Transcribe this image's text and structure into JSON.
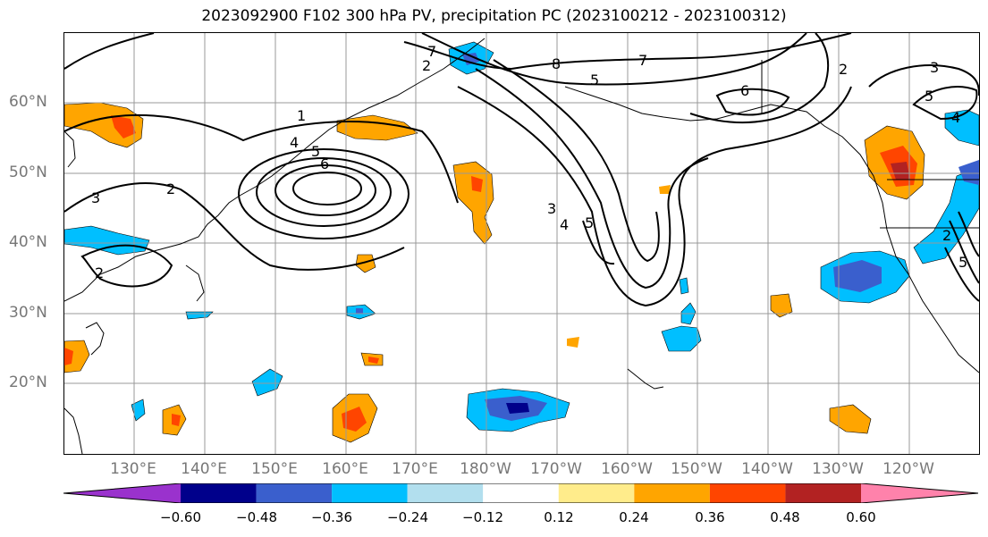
{
  "title": "2023092900 F102 300 hPa PV, precipitation PC (2023100212 - 2023100312)",
  "lon_labels": [
    "130°E",
    "140°E",
    "150°E",
    "160°E",
    "170°E",
    "180°W",
    "170°W",
    "160°W",
    "150°W",
    "140°W",
    "130°W",
    "120°W"
  ],
  "lat_labels": [
    "60°N",
    "50°N",
    "40°N",
    "30°N",
    "20°N"
  ],
  "colorbar": {
    "ticks": [
      "−0.60",
      "−0.48",
      "−0.36",
      "−0.24",
      "−0.12",
      "0.12",
      "0.24",
      "0.36",
      "0.48",
      "0.60"
    ],
    "colors": [
      "#9a32cd",
      "#00008b",
      "#3a5fcd",
      "#00bfff",
      "#b2dfee",
      "#ffffff",
      "#ffec8b",
      "#ffa500",
      "#ff4500",
      "#b22222",
      "#ff82ab"
    ]
  },
  "contour_labels": [
    "1",
    "2",
    "3",
    "4",
    "5",
    "6",
    "7",
    "8"
  ]
}
